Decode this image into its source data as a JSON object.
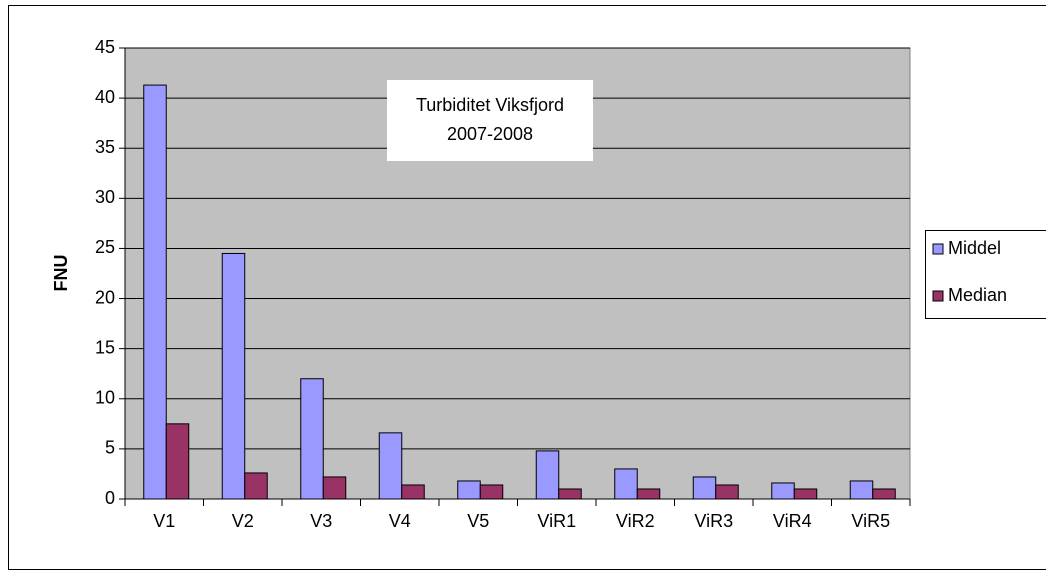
{
  "chart_data": {
    "type": "bar",
    "title": "Turbiditet Viksfjord",
    "subtitle": "2007-2008",
    "y_label": "FNU",
    "categories": [
      "V1",
      "V2",
      "V3",
      "V4",
      "V5",
      "ViR1",
      "ViR2",
      "ViR3",
      "ViR4",
      "ViR5"
    ],
    "series": [
      {
        "name": "Middel",
        "color": "#9999ff",
        "values": [
          41.3,
          24.5,
          12,
          6.6,
          1.8,
          4.8,
          3,
          2.2,
          1.6,
          1.8
        ]
      },
      {
        "name": "Median",
        "color": "#993366",
        "values": [
          7.5,
          2.6,
          2.2,
          1.4,
          1.4,
          1,
          1,
          1.4,
          1,
          1
        ]
      }
    ],
    "ylim": [
      0,
      45
    ],
    "yticks": [
      0,
      5,
      10,
      15,
      20,
      25,
      30,
      35,
      40,
      45
    ],
    "grid": true,
    "legend": "right"
  }
}
